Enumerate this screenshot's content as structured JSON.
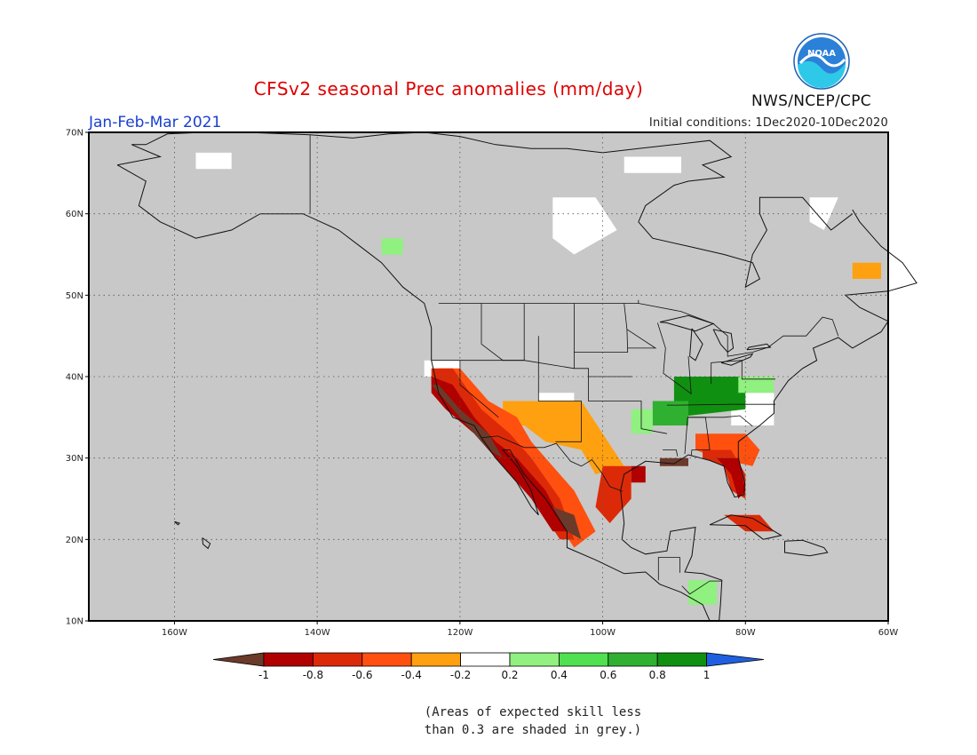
{
  "header": {
    "title": "CFSv2 seasonal Prec anomalies (mm/day)",
    "period": "Jan-Feb-Mar 2021",
    "initial_conditions": "Initial conditions: 1Dec2020-10Dec2020",
    "agency": "NWS/NCEP/CPC",
    "logo_text": "NOAA"
  },
  "map": {
    "lon_range": [
      -172,
      -60
    ],
    "lat_range": [
      10,
      70
    ],
    "lon_ticks": [
      "160W",
      "140W",
      "120W",
      "100W",
      "80W",
      "60W"
    ],
    "lat_ticks": [
      "70N",
      "60N",
      "50N",
      "40N",
      "30N",
      "20N",
      "10N"
    ],
    "background_color": "#c8c8c8",
    "gridlines": "dotted"
  },
  "colorbar": {
    "labels": [
      "-1",
      "-0.8",
      "-0.6",
      "-0.4",
      "-0.2",
      "0.2",
      "0.4",
      "0.6",
      "0.8",
      "1"
    ],
    "colors": [
      "#6b3a2a",
      "#b00000",
      "#dc2a08",
      "#ff5010",
      "#ffa010",
      "#ffffff",
      "#90f080",
      "#50e050",
      "#30b030",
      "#109010",
      "#2060e0"
    ]
  },
  "footnote": {
    "line1": "(Areas of expected skill less",
    "line2": "than 0.3 are shaded in grey.)"
  }
}
